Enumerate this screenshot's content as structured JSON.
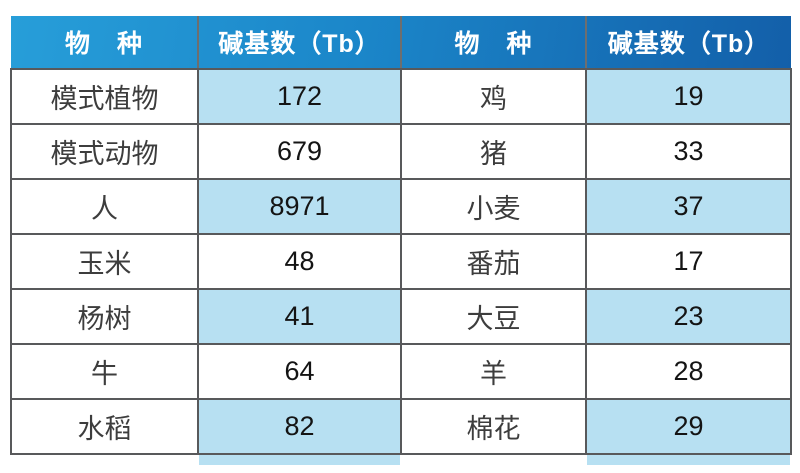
{
  "chart_data": {
    "type": "table",
    "title": "",
    "columns": [
      "物　种",
      "碱基数（Tb）",
      "物　种",
      "碱基数（Tb）"
    ],
    "rows": [
      [
        "模式植物",
        "172",
        "鸡",
        "19"
      ],
      [
        "模式动物",
        "679",
        "猪",
        "33"
      ],
      [
        "人",
        "8971",
        "小麦",
        "37"
      ],
      [
        "玉米",
        "48",
        "番茄",
        "17"
      ],
      [
        "杨树",
        "41",
        "大豆",
        "23"
      ],
      [
        "牛",
        "64",
        "羊",
        "28"
      ],
      [
        "水稻",
        "82",
        "棉花",
        "29"
      ]
    ],
    "layout_hints": {
      "header_style": "blue gradient, white bold text",
      "value_column_stripe": "odd rows light blue",
      "bottom_row_cutoff": "next row partially visible under value columns"
    }
  },
  "colors": {
    "header_grad_start": "#279ed9",
    "header_grad_end": "#135fa9",
    "stripe_blue": "#b7e0f2",
    "border_gray": "#58595b"
  }
}
